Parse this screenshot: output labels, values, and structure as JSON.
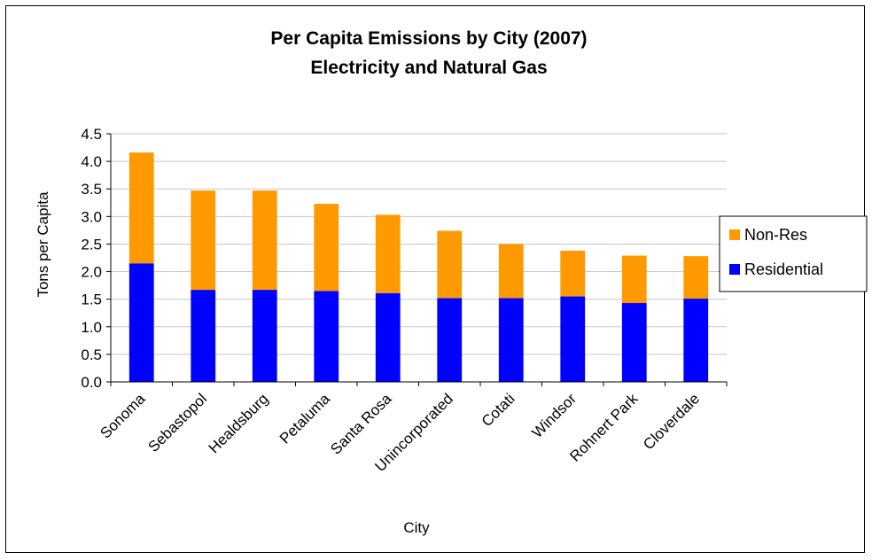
{
  "chart_data": {
    "type": "bar",
    "stacked": true,
    "title": [
      "Per Capita Emissions by City (2007)",
      "Electricity and Natural Gas"
    ],
    "xlabel": "City",
    "ylabel": "Tons per Capita",
    "ylim": [
      0,
      4.5
    ],
    "yticks": [
      "0.0",
      "0.5",
      "1.0",
      "1.5",
      "2.0",
      "2.5",
      "3.0",
      "3.5",
      "4.0",
      "4.5"
    ],
    "grid": true,
    "legend_position": "right",
    "categories": [
      "Sonoma",
      "Sebastopol",
      "Healdsburg",
      "Petaluma",
      "Santa Rosa",
      "Unincorporated",
      "Cotati",
      "Windsor",
      "Rohnert Park",
      "Cloverdale"
    ],
    "series": [
      {
        "name": "Residential",
        "color": "#0000ff",
        "values": [
          2.15,
          1.67,
          1.67,
          1.65,
          1.61,
          1.52,
          1.52,
          1.55,
          1.43,
          1.51
        ]
      },
      {
        "name": "Non-Res",
        "color": "#ff9900",
        "values": [
          2.01,
          1.8,
          1.8,
          1.58,
          1.42,
          1.22,
          0.98,
          0.83,
          0.86,
          0.77
        ]
      }
    ],
    "legend_order": [
      "Non-Res",
      "Residential"
    ]
  }
}
